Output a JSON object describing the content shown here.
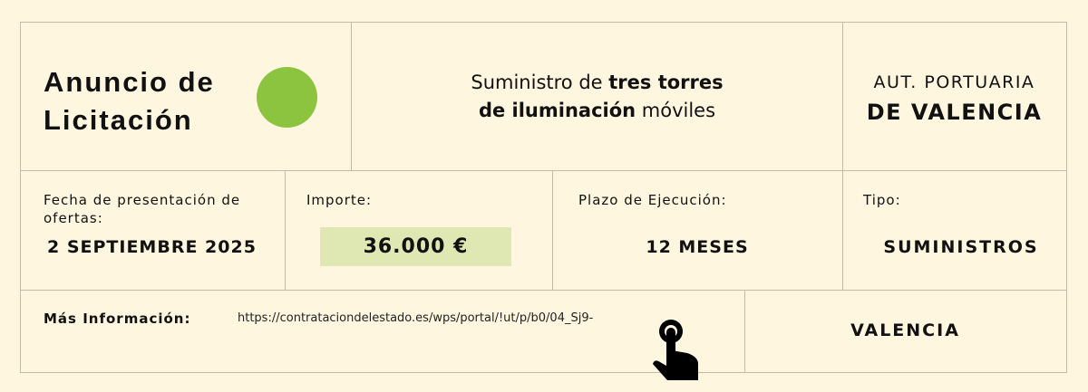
{
  "header": {
    "title_line1": "Anuncio de",
    "title_line2": "Licitación",
    "accent_color": "#8cc43f"
  },
  "description": {
    "part1": "Suministro de ",
    "part2": "tres torres",
    "part3": "de iluminación",
    "part4": " móviles"
  },
  "authority": {
    "line1": "AUT. PORTUARIA",
    "line2": "DE VALENCIA"
  },
  "fields": {
    "fecha_label": "Fecha de presentación de ofertas:",
    "fecha_value": "2 SEPTIEMBRE 2025",
    "importe_label": "Importe:",
    "importe_value": "36.000 €",
    "importe_bg": "#dfe8b3",
    "plazo_label": "Plazo de Ejecución:",
    "plazo_value": "12 MESES",
    "tipo_label": "Tipo:",
    "tipo_value": "SUMINISTROS"
  },
  "info": {
    "label": "Más Información:",
    "url": "https://contrataciondelestado.es/wps/portal/!ut/p/b0/04_Sj9-",
    "icon": "pointing-hand-icon",
    "location": "VALENCIA"
  }
}
